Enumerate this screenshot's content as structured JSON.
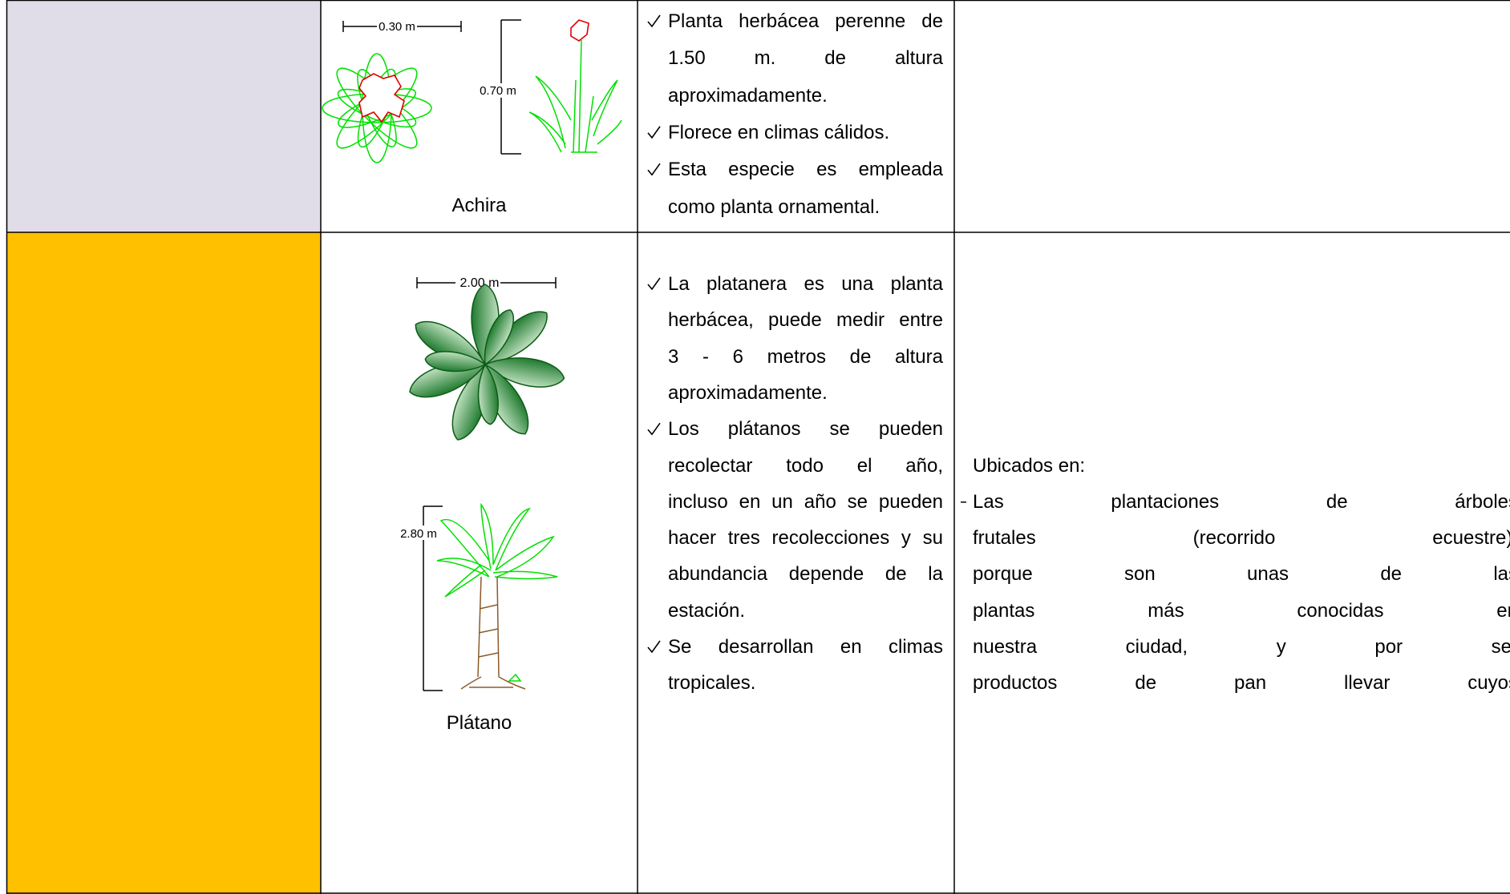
{
  "table": {
    "rows": [
      {
        "name": "Achira",
        "drawing_labels": [
          "0.30 m",
          "0.70 m"
        ],
        "description": [
          [
            "Planta herbácea perenne de",
            "1.50 m. de altura",
            "aproximadamente."
          ],
          [
            "Florece en climas cálidos."
          ],
          [
            "Esta especie es empleada",
            "como planta ornamental."
          ]
        ]
      },
      {
        "name": "Plátano",
        "drawing_labels": [
          "2.00 m",
          "2.80 m"
        ],
        "description": [
          [
            "La platanera es una planta",
            "herbácea, puede medir entre",
            "3 - 6 metros de altura",
            "aproximadamente."
          ],
          [
            "Los plátanos se pueden",
            "recolectar todo el año,",
            "incluso en un año se pueden",
            "hacer tres recolecciones y su",
            "abundancia depende de la",
            "estación."
          ],
          [
            "Se desarrollan en climas",
            "tropicales."
          ]
        ],
        "location": {
          "heading": "Ubicados en:",
          "items": [
            [
              "Las plantaciones de árboles",
              "frutales (recorrido ecuestre):",
              "porque son unas de las",
              "plantas más conocidas en",
              "nuestra ciudad, y por ser",
              "productos de pan llevar cuyos"
            ]
          ]
        }
      }
    ]
  }
}
